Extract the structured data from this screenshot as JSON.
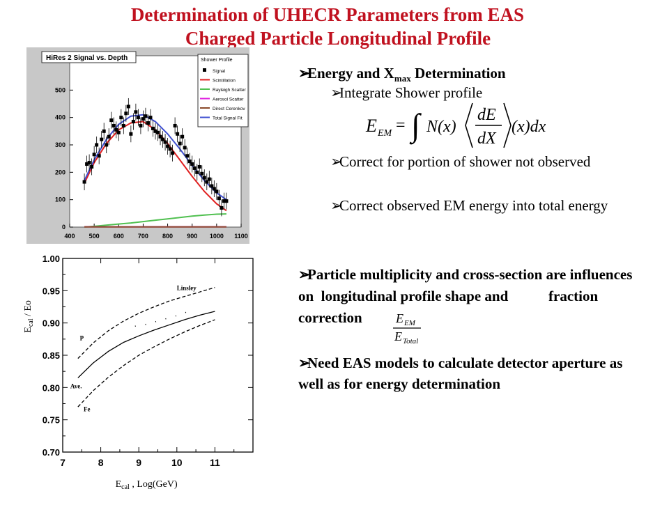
{
  "title": {
    "line1": "Determination of UHECR Parameters from EAS",
    "line2": "Charged Particle Longitudinal Profile"
  },
  "bullets": {
    "energy_heading_pre": "Energy and X",
    "energy_heading_sub": "max",
    "energy_heading_post": " Determination",
    "integrate": "Integrate Shower profile",
    "formula": {
      "lhs": "E",
      "lhs_sub": "EM",
      "eq": "=",
      "int": "∫",
      "nx": "N(x)",
      "num": "dE",
      "den": "dX",
      "tail": "(x)dx"
    },
    "correct1": "Correct for portion of shower not observed",
    "correct2": "Correct observed EM energy into total energy",
    "multiplicity": "Particle multiplicity and cross-section are influences on  longitudinal profile shape and           fraction correction",
    "frac_num": "E",
    "frac_num_sub": "EM",
    "frac_den": "E",
    "frac_den_sub": "Total",
    "need_models": "Need EAS models to calculate detector aperture as well as for energy determination",
    "bullet_symbol": "➢"
  },
  "chart_data": [
    {
      "type": "scatter",
      "title": "HiRes 2 Signal vs. Depth",
      "xlim": [
        400,
        1100
      ],
      "ylim": [
        0,
        600
      ],
      "xticks": [
        400,
        500,
        600,
        700,
        800,
        900,
        1000,
        1100
      ],
      "yticks": [
        0,
        100,
        200,
        300,
        400,
        500
      ],
      "legend_title": "Shower Profile",
      "legend_placement": "top-right",
      "series": [
        {
          "name": "Signal",
          "kind": "points",
          "color": "#000000",
          "x": [
            460,
            470,
            480,
            490,
            500,
            510,
            520,
            530,
            540,
            550,
            560,
            570,
            580,
            590,
            600,
            610,
            620,
            630,
            640,
            650,
            660,
            670,
            680,
            690,
            700,
            710,
            720,
            730,
            740,
            750,
            760,
            770,
            780,
            790,
            800,
            810,
            820,
            830,
            840,
            850,
            860,
            870,
            880,
            890,
            900,
            910,
            920,
            930,
            940,
            950,
            960,
            970,
            980,
            990,
            1000,
            1010,
            1020,
            1030,
            1040
          ],
          "y": [
            165,
            230,
            235,
            220,
            265,
            300,
            260,
            320,
            350,
            300,
            330,
            390,
            370,
            355,
            345,
            400,
            370,
            415,
            440,
            340,
            385,
            420,
            400,
            370,
            395,
            405,
            380,
            400,
            360,
            350,
            345,
            330,
            320,
            310,
            295,
            285,
            270,
            370,
            340,
            305,
            330,
            290,
            260,
            240,
            230,
            215,
            200,
            220,
            195,
            180,
            165,
            175,
            150,
            140,
            130,
            105,
            70,
            95,
            95
          ]
        },
        {
          "name": "Scintillation",
          "kind": "line",
          "color": "#e02020",
          "x": [
            460,
            500,
            550,
            600,
            650,
            700,
            750,
            800,
            850,
            900,
            950,
            1000,
            1040
          ],
          "y": [
            160,
            235,
            305,
            355,
            380,
            385,
            355,
            305,
            245,
            185,
            130,
            85,
            60
          ]
        },
        {
          "name": "Rayleigh Scatter",
          "kind": "line",
          "color": "#50c050",
          "x": [
            460,
            500,
            550,
            600,
            650,
            700,
            750,
            800,
            850,
            900,
            950,
            1000,
            1040
          ],
          "y": [
            0,
            3,
            7,
            11,
            15,
            20,
            25,
            30,
            35,
            40,
            44,
            47,
            48
          ]
        },
        {
          "name": "Aerosol Scatter",
          "kind": "line",
          "color": "#e020e0",
          "x": [
            460,
            1040
          ],
          "y": [
            1,
            1
          ]
        },
        {
          "name": "Direct Cerenkov",
          "kind": "line",
          "color": "#8a4a2a",
          "x": [
            460,
            1040
          ],
          "y": [
            0.5,
            0.5
          ]
        },
        {
          "name": "Total Signal Fit",
          "kind": "line",
          "color": "#4050d0",
          "x": [
            460,
            500,
            550,
            600,
            650,
            700,
            750,
            800,
            850,
            900,
            950,
            1000,
            1040
          ],
          "y": [
            170,
            245,
            320,
            375,
            405,
            410,
            385,
            340,
            285,
            225,
            170,
            125,
            100
          ]
        }
      ]
    },
    {
      "type": "line",
      "xlabel": "E",
      "xlabel_sub": "cal",
      "xlabel_post": " , Log(GeV)",
      "ylabel": "E",
      "ylabel_sub": "cal",
      "ylabel_post": " / Eo",
      "xlim": [
        7,
        12
      ],
      "ylim": [
        0.7,
        1.0
      ],
      "xticks": [
        7,
        8,
        9,
        10,
        11
      ],
      "yticks": [
        0.7,
        0.75,
        0.8,
        0.85,
        0.9,
        0.95,
        1.0
      ],
      "labels": [
        "Linsley",
        "P",
        "Ave.",
        "Fe"
      ],
      "series": [
        {
          "name": "P",
          "style": "dashed",
          "x": [
            7.4,
            7.8,
            8.2,
            8.6,
            9,
            9.4,
            9.8,
            10.2,
            10.6,
            11
          ],
          "y": [
            0.845,
            0.869,
            0.888,
            0.903,
            0.915,
            0.925,
            0.934,
            0.941,
            0.948,
            0.955
          ]
        },
        {
          "name": "Ave.",
          "style": "solid",
          "x": [
            7.4,
            7.8,
            8.2,
            8.6,
            9,
            9.4,
            9.8,
            10.2,
            10.6,
            11
          ],
          "y": [
            0.815,
            0.838,
            0.856,
            0.87,
            0.88,
            0.889,
            0.897,
            0.905,
            0.912,
            0.918
          ]
        },
        {
          "name": "Fe",
          "style": "dashed",
          "x": [
            7.4,
            7.8,
            8.2,
            8.6,
            9,
            9.4,
            9.8,
            10.2,
            10.6,
            11
          ],
          "y": [
            0.77,
            0.795,
            0.816,
            0.834,
            0.85,
            0.863,
            0.875,
            0.886,
            0.896,
            0.905
          ]
        },
        {
          "name": "Linsley",
          "style": "dotted",
          "x": [
            8.9,
            9.2,
            9.5,
            9.8,
            10.1,
            10.3
          ],
          "y": [
            0.895,
            0.898,
            0.903,
            0.908,
            0.913,
            0.918
          ]
        }
      ]
    }
  ]
}
